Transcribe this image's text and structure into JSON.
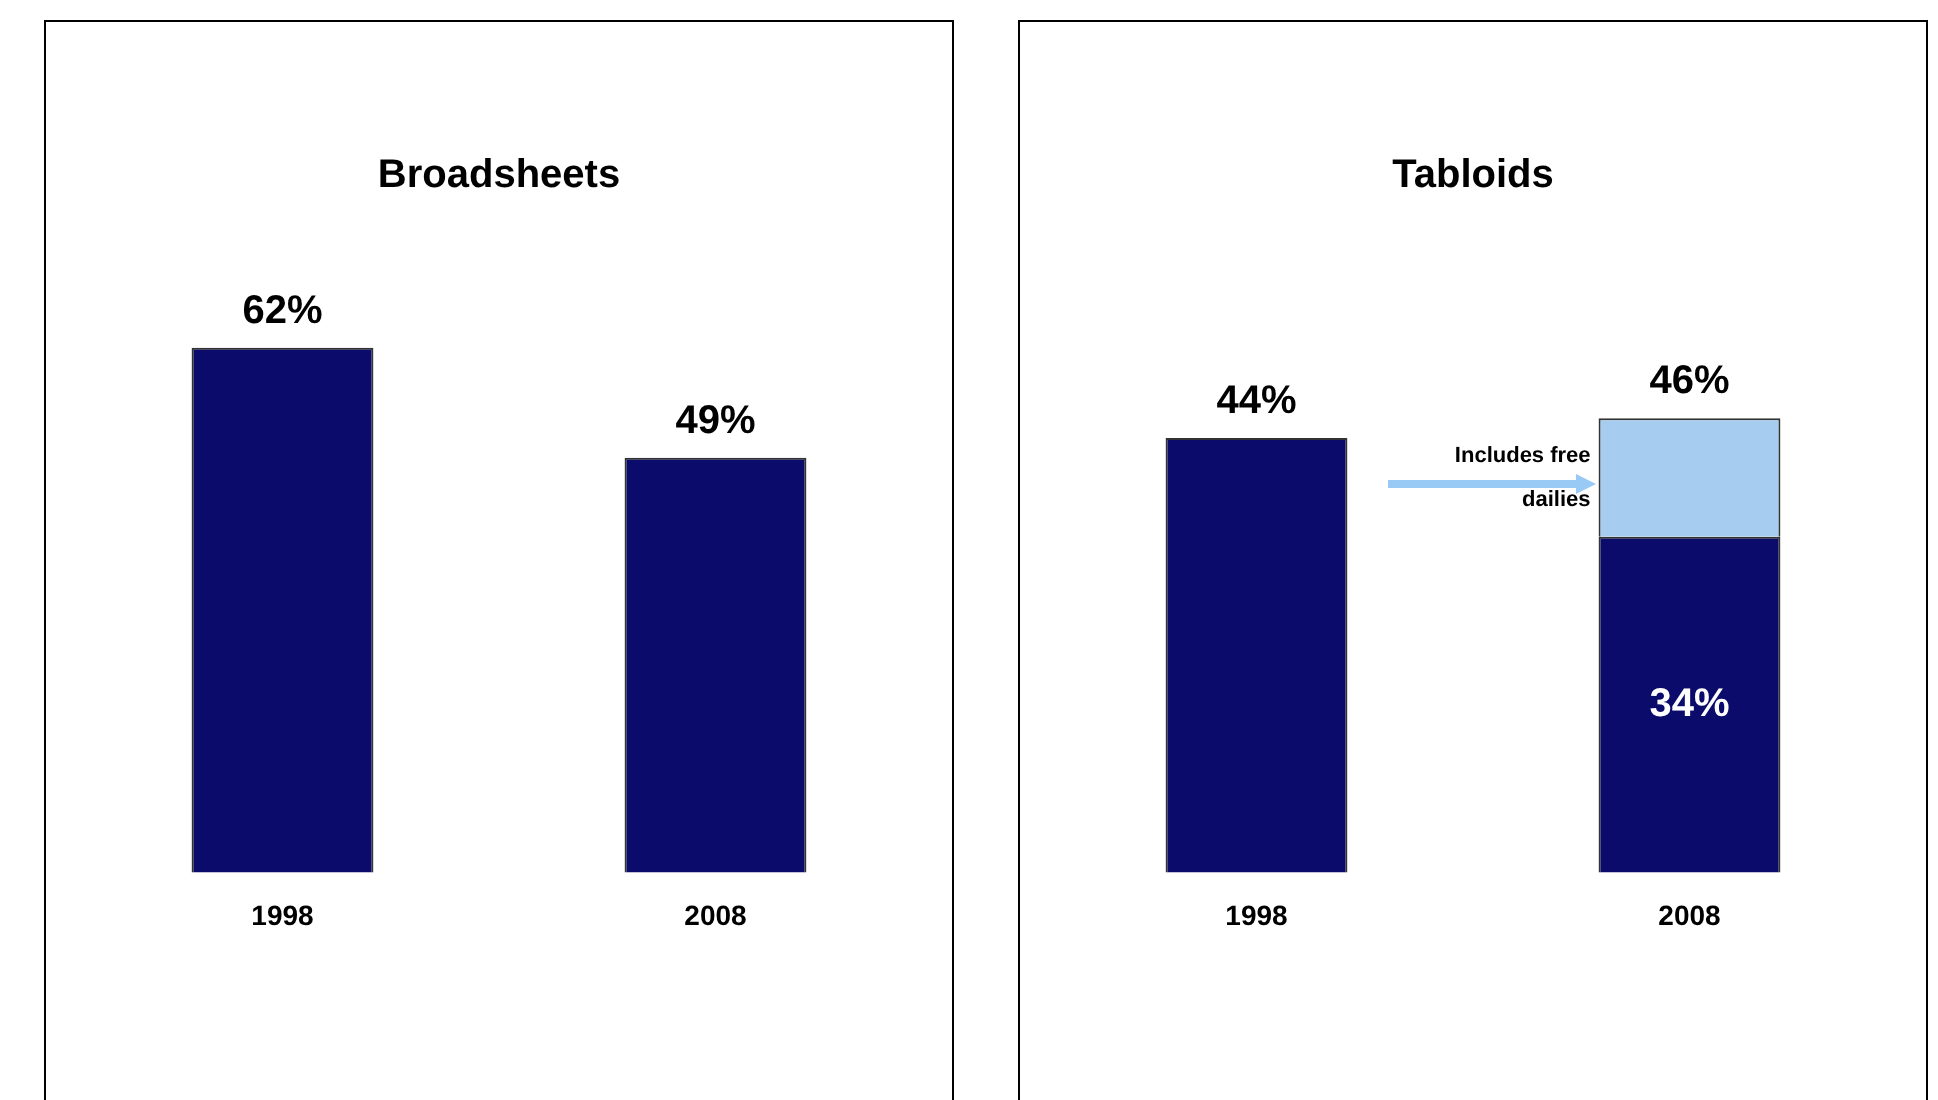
{
  "chart_data": [
    {
      "type": "bar",
      "title": "Broadsheets",
      "categories": [
        "1998",
        "2008"
      ],
      "values": [
        62,
        49
      ],
      "value_labels": [
        "62%",
        "49%"
      ],
      "color": "#0b0b6b",
      "tick_labels": "x",
      "grid": false,
      "legend": false
    },
    {
      "type": "bar",
      "title": "Tabloids",
      "categories": [
        "1998",
        "2008"
      ],
      "stacked": true,
      "series": [
        {
          "color": "#0b0b6b",
          "values": [
            44,
            34
          ],
          "value_labels": [
            null,
            "34%"
          ]
        },
        {
          "color": "#a6cdf0",
          "values": [
            null,
            12
          ]
        }
      ],
      "totals": [
        "44%",
        "46%"
      ],
      "annotations": [
        "Includes free dailies"
      ],
      "tick_labels": "x",
      "grid": false,
      "legend": false
    }
  ]
}
